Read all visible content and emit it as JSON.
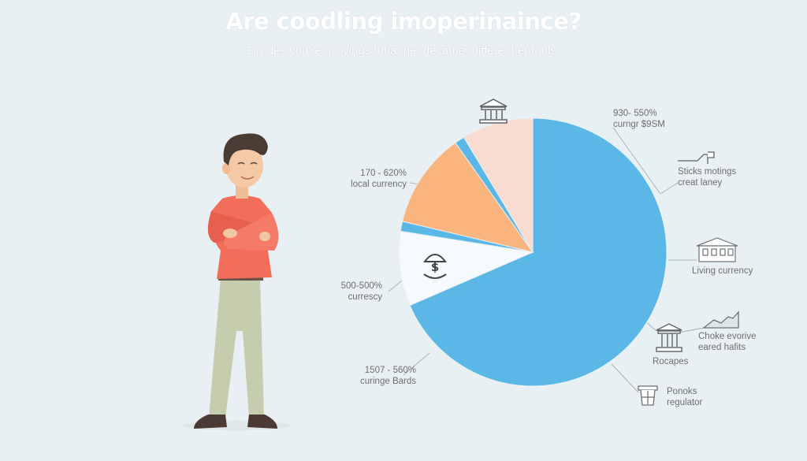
{
  "title": "Are coodling imoperinaince?",
  "subtitle": "Divides you're a sivings furianbe, decame, differe ther tools.",
  "colors": {
    "background": "#e9f0f3",
    "blue": "#5bb8e6",
    "peach": "#f8dcd2",
    "orange": "#f9b57d",
    "white": "#f5fbfd",
    "shirt": "#f26e5b",
    "pants": "#c6ccae"
  },
  "icons": [
    "bank-icon",
    "money-umbrella-icon",
    "building-icon",
    "line-chart-icon",
    "bank-icon",
    "basket-icon",
    "flag-icon"
  ],
  "chart_data": {
    "type": "pie",
    "title": "Are coodling imoperinaince?",
    "slices": [
      {
        "value": 68.5,
        "color": "#5bb8e6"
      },
      {
        "value": 9.0,
        "color": "#f5fbfd"
      },
      {
        "value": 1.2,
        "color": "#5bb8e6"
      },
      {
        "value": 11.5,
        "color": "#f9b57d"
      },
      {
        "value": 1.2,
        "color": "#5bb8e6"
      },
      {
        "value": 8.6,
        "color": "#f8dcd2"
      }
    ],
    "annotations": [
      {
        "line1": "930- 550%",
        "line2": "curngr $9SM"
      },
      {
        "line1": "Sticks motings",
        "line2": "creat laney"
      },
      {
        "line1": "",
        "line2": "Living currency"
      },
      {
        "line1": "Choke evorive",
        "line2": "eared hafits"
      },
      {
        "line1": "",
        "line2": "Rocapes"
      },
      {
        "line1": "Ponoks",
        "line2": "regulator"
      },
      {
        "line1": "170 - 620%",
        "line2": "local currency"
      },
      {
        "line1": "500-500%",
        "line2": "currescy"
      },
      {
        "line1": "1507 - 560%",
        "line2": "curinge Bards"
      }
    ]
  }
}
